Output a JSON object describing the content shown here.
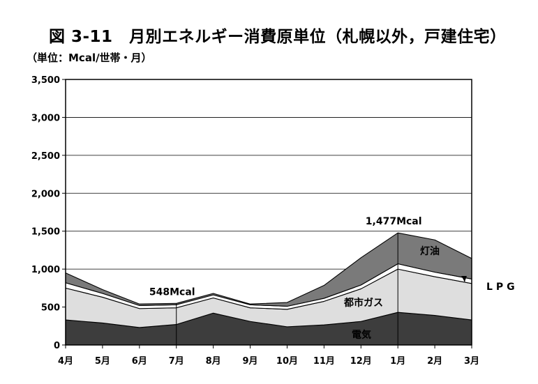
{
  "title": "図 3-11　月別エネルギー消費原単位（札幌以外，戸建住宅）",
  "unit_label": "（単位：Mcal/世帯・月）",
  "colors": {
    "electricity": "#3d3d3d",
    "city_gas": "#dedede",
    "lpg": "#ffffff",
    "kerosene": "#7a7a7a",
    "outline": "#000000"
  },
  "chart_data": {
    "type": "area",
    "stacked": true,
    "x": [
      "4月",
      "5月",
      "6月",
      "7月",
      "8月",
      "9月",
      "10月",
      "11月",
      "12月",
      "1月",
      "2月",
      "3月"
    ],
    "ylim": [
      0,
      3500
    ],
    "yticks": [
      0,
      500,
      1000,
      1500,
      2000,
      2500,
      3000,
      3500
    ],
    "ytick_labels": [
      "0",
      "500",
      "1,000",
      "1,500",
      "2,000",
      "2,500",
      "3,000",
      "3,500"
    ],
    "grid": "horizontal",
    "series": [
      {
        "name": "電気",
        "values": [
          330,
          290,
          230,
          270,
          420,
          310,
          240,
          265,
          310,
          430,
          390,
          330
        ]
      },
      {
        "name": "都市ガス",
        "values": [
          420,
          340,
          250,
          220,
          200,
          180,
          230,
          310,
          430,
          570,
          510,
          480
        ]
      },
      {
        "name": "LPG",
        "values": [
          70,
          50,
          40,
          40,
          40,
          40,
          40,
          40,
          50,
          70,
          60,
          60
        ]
      },
      {
        "name": "灯油",
        "values": [
          130,
          50,
          20,
          18,
          20,
          10,
          50,
          170,
          360,
          407,
          425,
          270
        ]
      }
    ],
    "annotations": [
      {
        "text": "548Mcal",
        "x": "7月",
        "y": 548
      },
      {
        "text": "1,477Mcal",
        "x": "1月",
        "y": 1477
      }
    ]
  }
}
